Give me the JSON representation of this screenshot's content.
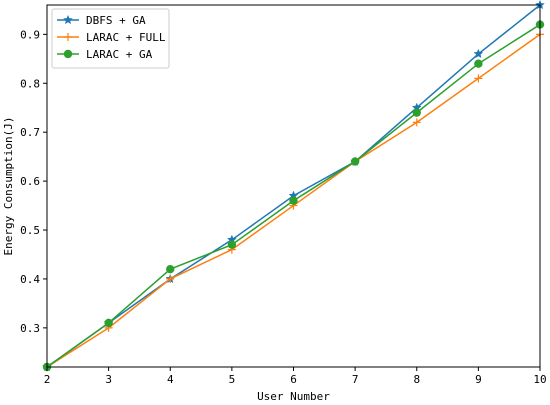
{
  "chart_data": {
    "type": "line",
    "title": "",
    "xlabel": "User Number",
    "ylabel": "Energy Consumption(J)",
    "xlim": [
      2,
      10
    ],
    "ylim": [
      0.22,
      0.96
    ],
    "x": [
      2,
      3,
      4,
      5,
      6,
      7,
      8,
      9,
      10
    ],
    "xticks": [
      2,
      3,
      4,
      5,
      6,
      7,
      8,
      9,
      10
    ],
    "yticks": [
      0.3,
      0.4,
      0.5,
      0.6,
      0.7,
      0.8,
      0.9
    ],
    "grid": false,
    "legend_position": "top-left",
    "series": [
      {
        "name": "DBFS + GA",
        "color": "#1f77b4",
        "marker": "star",
        "values": [
          0.22,
          0.31,
          0.4,
          0.48,
          0.57,
          0.64,
          0.75,
          0.86,
          0.96
        ]
      },
      {
        "name": "LARAC + FULL",
        "color": "#ff7f0e",
        "marker": "plus",
        "values": [
          0.22,
          0.3,
          0.4,
          0.46,
          0.55,
          0.64,
          0.72,
          0.81,
          0.9
        ]
      },
      {
        "name": "LARAC + GA",
        "color": "#2ca02c",
        "marker": "circle",
        "values": [
          0.22,
          0.31,
          0.42,
          0.47,
          0.56,
          0.64,
          0.74,
          0.84,
          0.92
        ]
      }
    ]
  }
}
